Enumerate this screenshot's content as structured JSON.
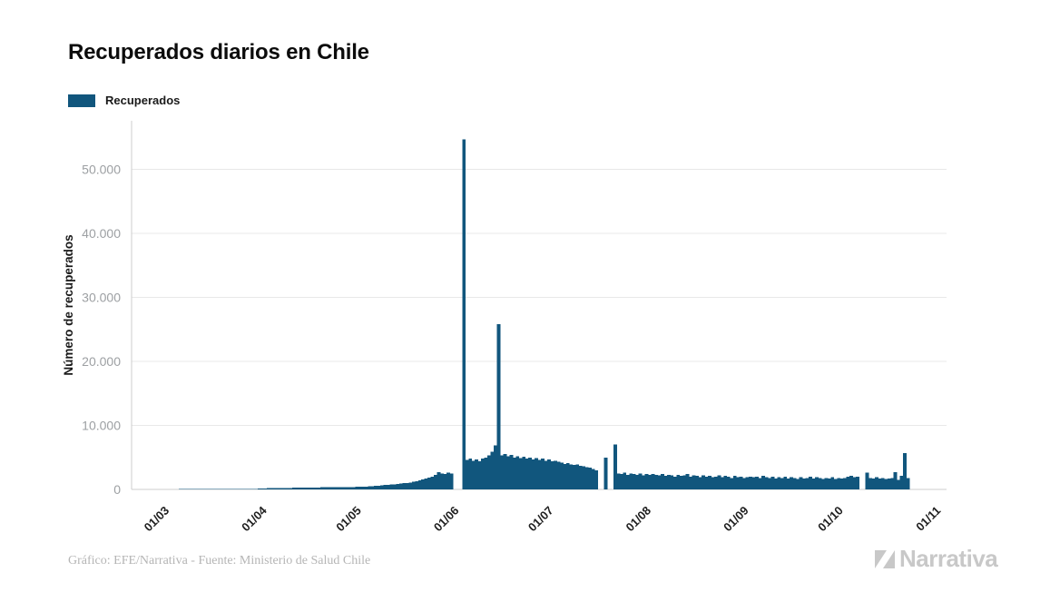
{
  "header": {
    "title": "Recuperados diarios en Chile"
  },
  "legend": {
    "label": "Recuperados"
  },
  "chart_data": {
    "type": "bar",
    "title": "Recuperados diarios en Chile",
    "xlabel": "",
    "ylabel": "Número de recuperados",
    "legend_entries": [
      "Recuperados"
    ],
    "legend_position": "top-left",
    "grid": "horizontal",
    "ylim": [
      0,
      57500
    ],
    "y_ticks": [
      {
        "value": 0,
        "label": "0"
      },
      {
        "value": 10000,
        "label": "10.000"
      },
      {
        "value": 20000,
        "label": "20.000"
      },
      {
        "value": 30000,
        "label": "30.000"
      },
      {
        "value": 40000,
        "label": "40.000"
      },
      {
        "value": 50000,
        "label": "50.000"
      }
    ],
    "x_ticks": [
      {
        "label": "01/03",
        "day_index": 13
      },
      {
        "label": "01/04",
        "day_index": 44
      },
      {
        "label": "01/05",
        "day_index": 74
      },
      {
        "label": "01/06",
        "day_index": 105
      },
      {
        "label": "01/07",
        "day_index": 135
      },
      {
        "label": "01/08",
        "day_index": 166
      },
      {
        "label": "01/09",
        "day_index": 197
      },
      {
        "label": "01/10",
        "day_index": 227
      },
      {
        "label": "01/11",
        "day_index": 258
      }
    ],
    "series": [
      {
        "name": "Recuperados",
        "color": "#11567D",
        "daily_values": [
          0,
          0,
          0,
          0,
          0,
          0,
          0,
          0,
          0,
          0,
          0,
          0,
          0,
          0,
          0,
          1,
          1,
          2,
          2,
          3,
          4,
          5,
          6,
          8,
          10,
          12,
          15,
          18,
          22,
          26,
          30,
          36,
          43,
          50,
          58,
          66,
          75,
          85,
          95,
          105,
          120,
          135,
          155,
          180,
          195,
          205,
          215,
          225,
          230,
          240,
          235,
          250,
          260,
          270,
          265,
          280,
          290,
          300,
          295,
          310,
          320,
          330,
          325,
          340,
          350,
          360,
          355,
          370,
          380,
          390,
          385,
          400,
          410,
          420,
          450,
          480,
          520,
          560,
          600,
          640,
          680,
          720,
          760,
          800,
          850,
          900,
          960,
          1020,
          1100,
          1200,
          1300,
          1400,
          1550,
          1700,
          1850,
          2000,
          2300,
          2700,
          2500,
          2400,
          2600,
          2500,
          0,
          0,
          0,
          54700,
          4600,
          4800,
          4500,
          4700,
          4400,
          4800,
          5000,
          5300,
          5900,
          6900,
          25800,
          5300,
          5500,
          5200,
          5400,
          5000,
          5200,
          4900,
          5100,
          4800,
          5000,
          4700,
          4900,
          4600,
          4800,
          4500,
          4700,
          4400,
          4500,
          4300,
          4200,
          4000,
          4100,
          3900,
          3800,
          3900,
          3700,
          3600,
          3500,
          3400,
          3200,
          3000,
          0,
          0,
          5000,
          0,
          0,
          7000,
          2500,
          2400,
          2600,
          2300,
          2500,
          2400,
          2300,
          2500,
          2200,
          2400,
          2300,
          2400,
          2300,
          2200,
          2400,
          2100,
          2300,
          2200,
          2000,
          2300,
          2100,
          2200,
          2400,
          2000,
          2200,
          2100,
          1900,
          2200,
          2000,
          2100,
          1900,
          2000,
          2200,
          1900,
          2100,
          2000,
          1800,
          2100,
          1900,
          2000,
          1800,
          1900,
          2000,
          1900,
          2000,
          1800,
          2100,
          1900,
          1800,
          2000,
          1700,
          1900,
          1800,
          2000,
          1700,
          1900,
          1800,
          1600,
          1900,
          1700,
          1800,
          2000,
          1700,
          1900,
          1800,
          1600,
          1800,
          1700,
          1900,
          1600,
          1800,
          1700,
          1800,
          2000,
          2100,
          1900,
          2000,
          0,
          0,
          2600,
          1800,
          1700,
          1900,
          1700,
          1800,
          1600,
          1700,
          1800,
          2700,
          1500,
          2100,
          5700,
          1800
        ]
      }
    ]
  },
  "footer": {
    "credit": "Gráfico: EFE/Narrativa - Fuente: Ministerio de Salud Chile"
  },
  "brand": {
    "name": "Narrativa"
  },
  "colors": {
    "bar": "#11567D",
    "grid": "#e8e8e8",
    "axis_line": "#cccccc",
    "y_tick_label": "#9da0a3",
    "x_tick_label": "#1f1f1f",
    "axis_title": "#1a1a1a",
    "title": "#0c0c0c",
    "footer_text": "#b5b5b5",
    "brand": "#c8c8c8"
  }
}
